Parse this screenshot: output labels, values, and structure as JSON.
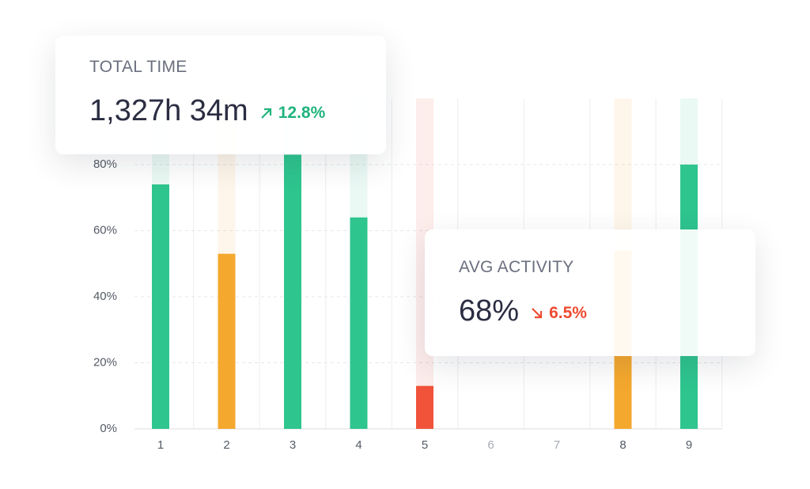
{
  "chart_data": {
    "type": "bar",
    "categories": [
      "1",
      "2",
      "3",
      "4",
      "5",
      "6",
      "7",
      "8",
      "9"
    ],
    "values": [
      74,
      53,
      83,
      64,
      13,
      null,
      null,
      54,
      80
    ],
    "colors": [
      "#2ec58f",
      "#f5a82e",
      "#2ec58f",
      "#2ec58f",
      "#f0533a",
      null,
      null,
      "#f5a82e",
      "#2ec58f"
    ],
    "ylim": [
      0,
      100
    ],
    "yticks": [
      {
        "value": 0,
        "label": "0%"
      },
      {
        "value": 20,
        "label": "20%"
      },
      {
        "value": 40,
        "label": "40%"
      },
      {
        "value": 60,
        "label": "60%"
      },
      {
        "value": 80,
        "label": "80%"
      }
    ],
    "grid": true
  },
  "cards": [
    {
      "label": "TOTAL TIME",
      "value": "1,327h 34m",
      "change": "12.8%",
      "direction": "up",
      "color": "#1fb47d"
    },
    {
      "label": "AVG ACTIVITY",
      "value": "68%",
      "change": "6.5%",
      "direction": "down",
      "color": "#ee4b32"
    }
  ]
}
